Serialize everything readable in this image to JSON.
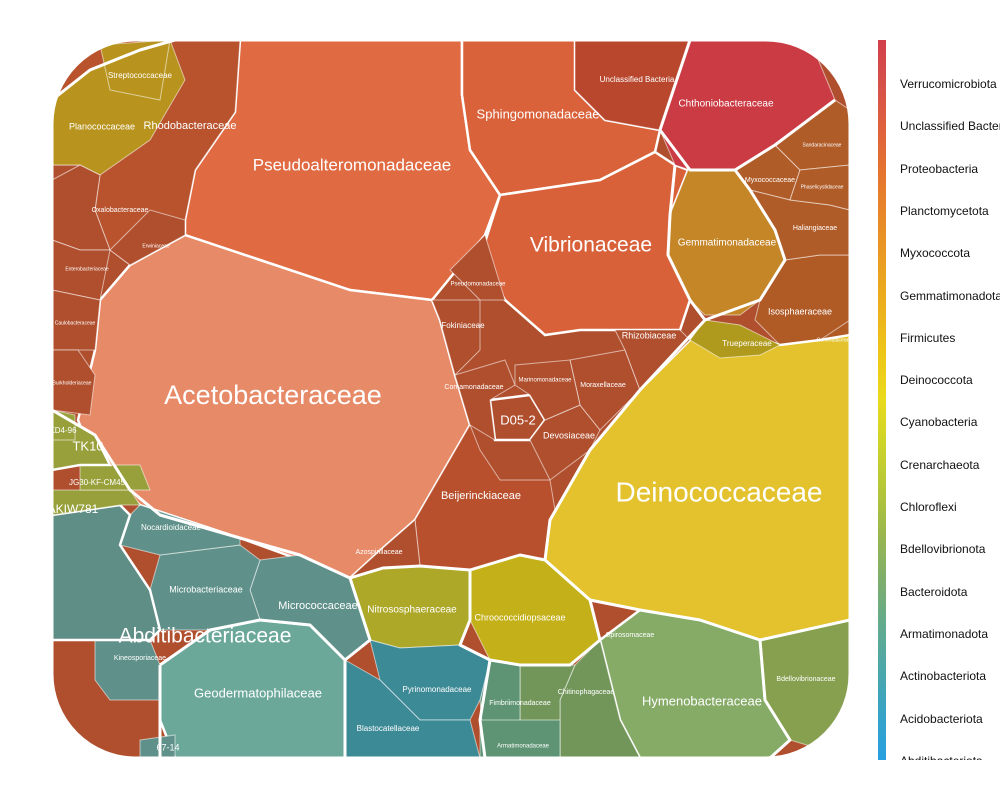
{
  "chart_data": {
    "type": "voronoi-treemap",
    "title": "",
    "legend": {
      "position": "right",
      "entries": [
        {
          "label": "Verrucomicrobiota",
          "color": "#d2404a"
        },
        {
          "label": "Unclassified Bacteria",
          "color": "#d6504a"
        },
        {
          "label": "Proteobacteria",
          "color": "#e0633c"
        },
        {
          "label": "Planctomycetota",
          "color": "#e5762e"
        },
        {
          "label": "Myxococcota",
          "color": "#e88a28"
        },
        {
          "label": "Gemmatimonadota",
          "color": "#ea9e22"
        },
        {
          "label": "Firmicutes",
          "color": "#ecb31c"
        },
        {
          "label": "Deinococcota",
          "color": "#eec818"
        },
        {
          "label": "Cyanobacteria",
          "color": "#e9da1c"
        },
        {
          "label": "Crenarchaeota",
          "color": "#cdd42a"
        },
        {
          "label": "Chloroflexi",
          "color": "#b2c53a"
        },
        {
          "label": "Bdellovibrionota",
          "color": "#97b650"
        },
        {
          "label": "Bacteroidota",
          "color": "#7eae6c"
        },
        {
          "label": "Armatimonadota",
          "color": "#64ab8c"
        },
        {
          "label": "Actinobacteriota",
          "color": "#4aa7ac"
        },
        {
          "label": "Acidobacteriota",
          "color": "#36a3c8"
        },
        {
          "label": "Abditibacteriota",
          "color": "#28a0e0"
        }
      ]
    },
    "cells": [
      {
        "label": "Pseudoalteromonadaceae",
        "phylum": "Proteobacteria",
        "color": "#e06a42"
      },
      {
        "label": "Acetobacteraceae",
        "phylum": "Proteobacteria",
        "color": "#e78a68"
      },
      {
        "label": "Rhodobacteraceae",
        "phylum": "Proteobacteria",
        "color": "#b8532e"
      },
      {
        "label": "Sphingomonadaceae",
        "phylum": "Proteobacteria",
        "color": "#d9623a"
      },
      {
        "label": "Vibrionaceae",
        "phylum": "Proteobacteria",
        "color": "#d9613a"
      },
      {
        "label": "Unclassified Bacteria",
        "phylum": "Unclassified Bacteria",
        "color": "#b8472e"
      },
      {
        "label": "Chthoniobacteraceae",
        "phylum": "Verrucomicrobiota",
        "color": "#cb3b44"
      },
      {
        "label": "Gemmatimonadaceae",
        "phylum": "Gemmatimonadota",
        "color": "#c58628"
      },
      {
        "label": "Isosphaeraceae",
        "phylum": "Planctomycetota",
        "color": "#b05a26"
      },
      {
        "label": "Myxococcaceae",
        "phylum": "Myxococcota",
        "color": "#b05c28"
      },
      {
        "label": "Haliangiaceae",
        "phylum": "Myxococcota",
        "color": "#b05c28"
      },
      {
        "label": "Sandaracinaceae",
        "phylum": "Myxococcota",
        "color": "#b05c28"
      },
      {
        "label": "Phaselicystidaceae",
        "phylum": "Myxococcota",
        "color": "#b05c28"
      },
      {
        "label": "Gemmataceae",
        "phylum": "Planctomycetota",
        "color": "#b05a26"
      },
      {
        "label": "Deinococcaceae",
        "phylum": "Deinococcota",
        "color": "#e3c22e"
      },
      {
        "label": "Trueperaceae",
        "phylum": "Deinococcota",
        "color": "#b09a1e"
      },
      {
        "label": "Chroococcidiopsaceae",
        "phylum": "Cyanobacteria",
        "color": "#c4b018"
      },
      {
        "label": "Nitrososphaeraceae",
        "phylum": "Crenarchaeota",
        "color": "#ada828"
      },
      {
        "label": "Hymenobacteraceae",
        "phylum": "Bacteroidota",
        "color": "#85ab67"
      },
      {
        "label": "Bdellovibrionaceae",
        "phylum": "Bdellovibrionota",
        "color": "#87a04f"
      },
      {
        "label": "Spirosomaceae",
        "phylum": "Bacteroidota",
        "color": "#72965a"
      },
      {
        "label": "Chitinophagaceae",
        "phylum": "Bacteroidota",
        "color": "#72965a"
      },
      {
        "label": "Fimbriimonadaceae",
        "phylum": "Armatimonadota",
        "color": "#5e9474"
      },
      {
        "label": "Armatimonadaceae",
        "phylum": "Armatimonadota",
        "color": "#5e9474"
      },
      {
        "label": "Pyrinomonadaceae",
        "phylum": "Acidobacteriota",
        "color": "#3c8a96"
      },
      {
        "label": "Blastocatellaceae",
        "phylum": "Acidobacteriota",
        "color": "#3c8a96"
      },
      {
        "label": "Geodermatophilaceae",
        "phylum": "Actinobacteriota",
        "color": "#6ba89a"
      },
      {
        "label": "Micrococcaceae",
        "phylum": "Actinobacteriota",
        "color": "#5f918a"
      },
      {
        "label": "Microbacteriaceae",
        "phylum": "Actinobacteriota",
        "color": "#5f918a"
      },
      {
        "label": "Nocardioidaceae",
        "phylum": "Actinobacteriota",
        "color": "#5f918a"
      },
      {
        "label": "Kineosporiaceae",
        "phylum": "Actinobacteriota",
        "color": "#5f918a"
      },
      {
        "label": "Abditibacteriaceae",
        "phylum": "Abditibacteriota",
        "color": "#5f8e86"
      },
      {
        "label": "67-14",
        "phylum": "Actinobacteriota",
        "color": "#5f918a"
      },
      {
        "label": "AKIW781",
        "phylum": "Chloroflexi",
        "color": "#97a03a"
      },
      {
        "label": "JG30-KF-CM45",
        "phylum": "Chloroflexi",
        "color": "#97a03a"
      },
      {
        "label": "TK10",
        "phylum": "Chloroflexi",
        "color": "#97a03a"
      },
      {
        "label": "KD4-96",
        "phylum": "Chloroflexi",
        "color": "#97a03a"
      },
      {
        "label": "Planococcaceae",
        "phylum": "Firmicutes",
        "color": "#b8941e"
      },
      {
        "label": "Streptococcaceae",
        "phylum": "Firmicutes",
        "color": "#b8941e"
      },
      {
        "label": "Oxalobacteraceae",
        "phylum": "Proteobacteria",
        "color": "#b04f2e"
      },
      {
        "label": "Enterobacteriaceae",
        "phylum": "Proteobacteria",
        "color": "#b04f2e"
      },
      {
        "label": "Caulobacteraceae",
        "phylum": "Proteobacteria",
        "color": "#b04f2e"
      },
      {
        "label": "Burkholderiaceae",
        "phylum": "Proteobacteria",
        "color": "#b04f2e"
      },
      {
        "label": "Erwiniaceae",
        "phylum": "Proteobacteria",
        "color": "#b04f2e"
      },
      {
        "label": "Beijerinckiaceae",
        "phylum": "Proteobacteria",
        "color": "#b8502e"
      },
      {
        "label": "D05-2",
        "phylum": "Proteobacteria",
        "color": "#b04f2e"
      },
      {
        "label": "Devosiaceae",
        "phylum": "Proteobacteria",
        "color": "#b04f2e"
      },
      {
        "label": "Comamonadaceae",
        "phylum": "Proteobacteria",
        "color": "#b04f2e"
      },
      {
        "label": "Fokiniaceae",
        "phylum": "Proteobacteria",
        "color": "#b04f2e"
      },
      {
        "label": "Moraxellaceae",
        "phylum": "Proteobacteria",
        "color": "#b04f2e"
      },
      {
        "label": "Rhizobiaceae",
        "phylum": "Proteobacteria",
        "color": "#b04f2e"
      },
      {
        "label": "Marinomonadaceae",
        "phylum": "Proteobacteria",
        "color": "#b04f2e"
      },
      {
        "label": "Azospirillaceae",
        "phylum": "Proteobacteria",
        "color": "#b04f2e"
      },
      {
        "label": "Pseudomonadaceae",
        "phylum": "Proteobacteria",
        "color": "#b04f2e"
      }
    ]
  }
}
